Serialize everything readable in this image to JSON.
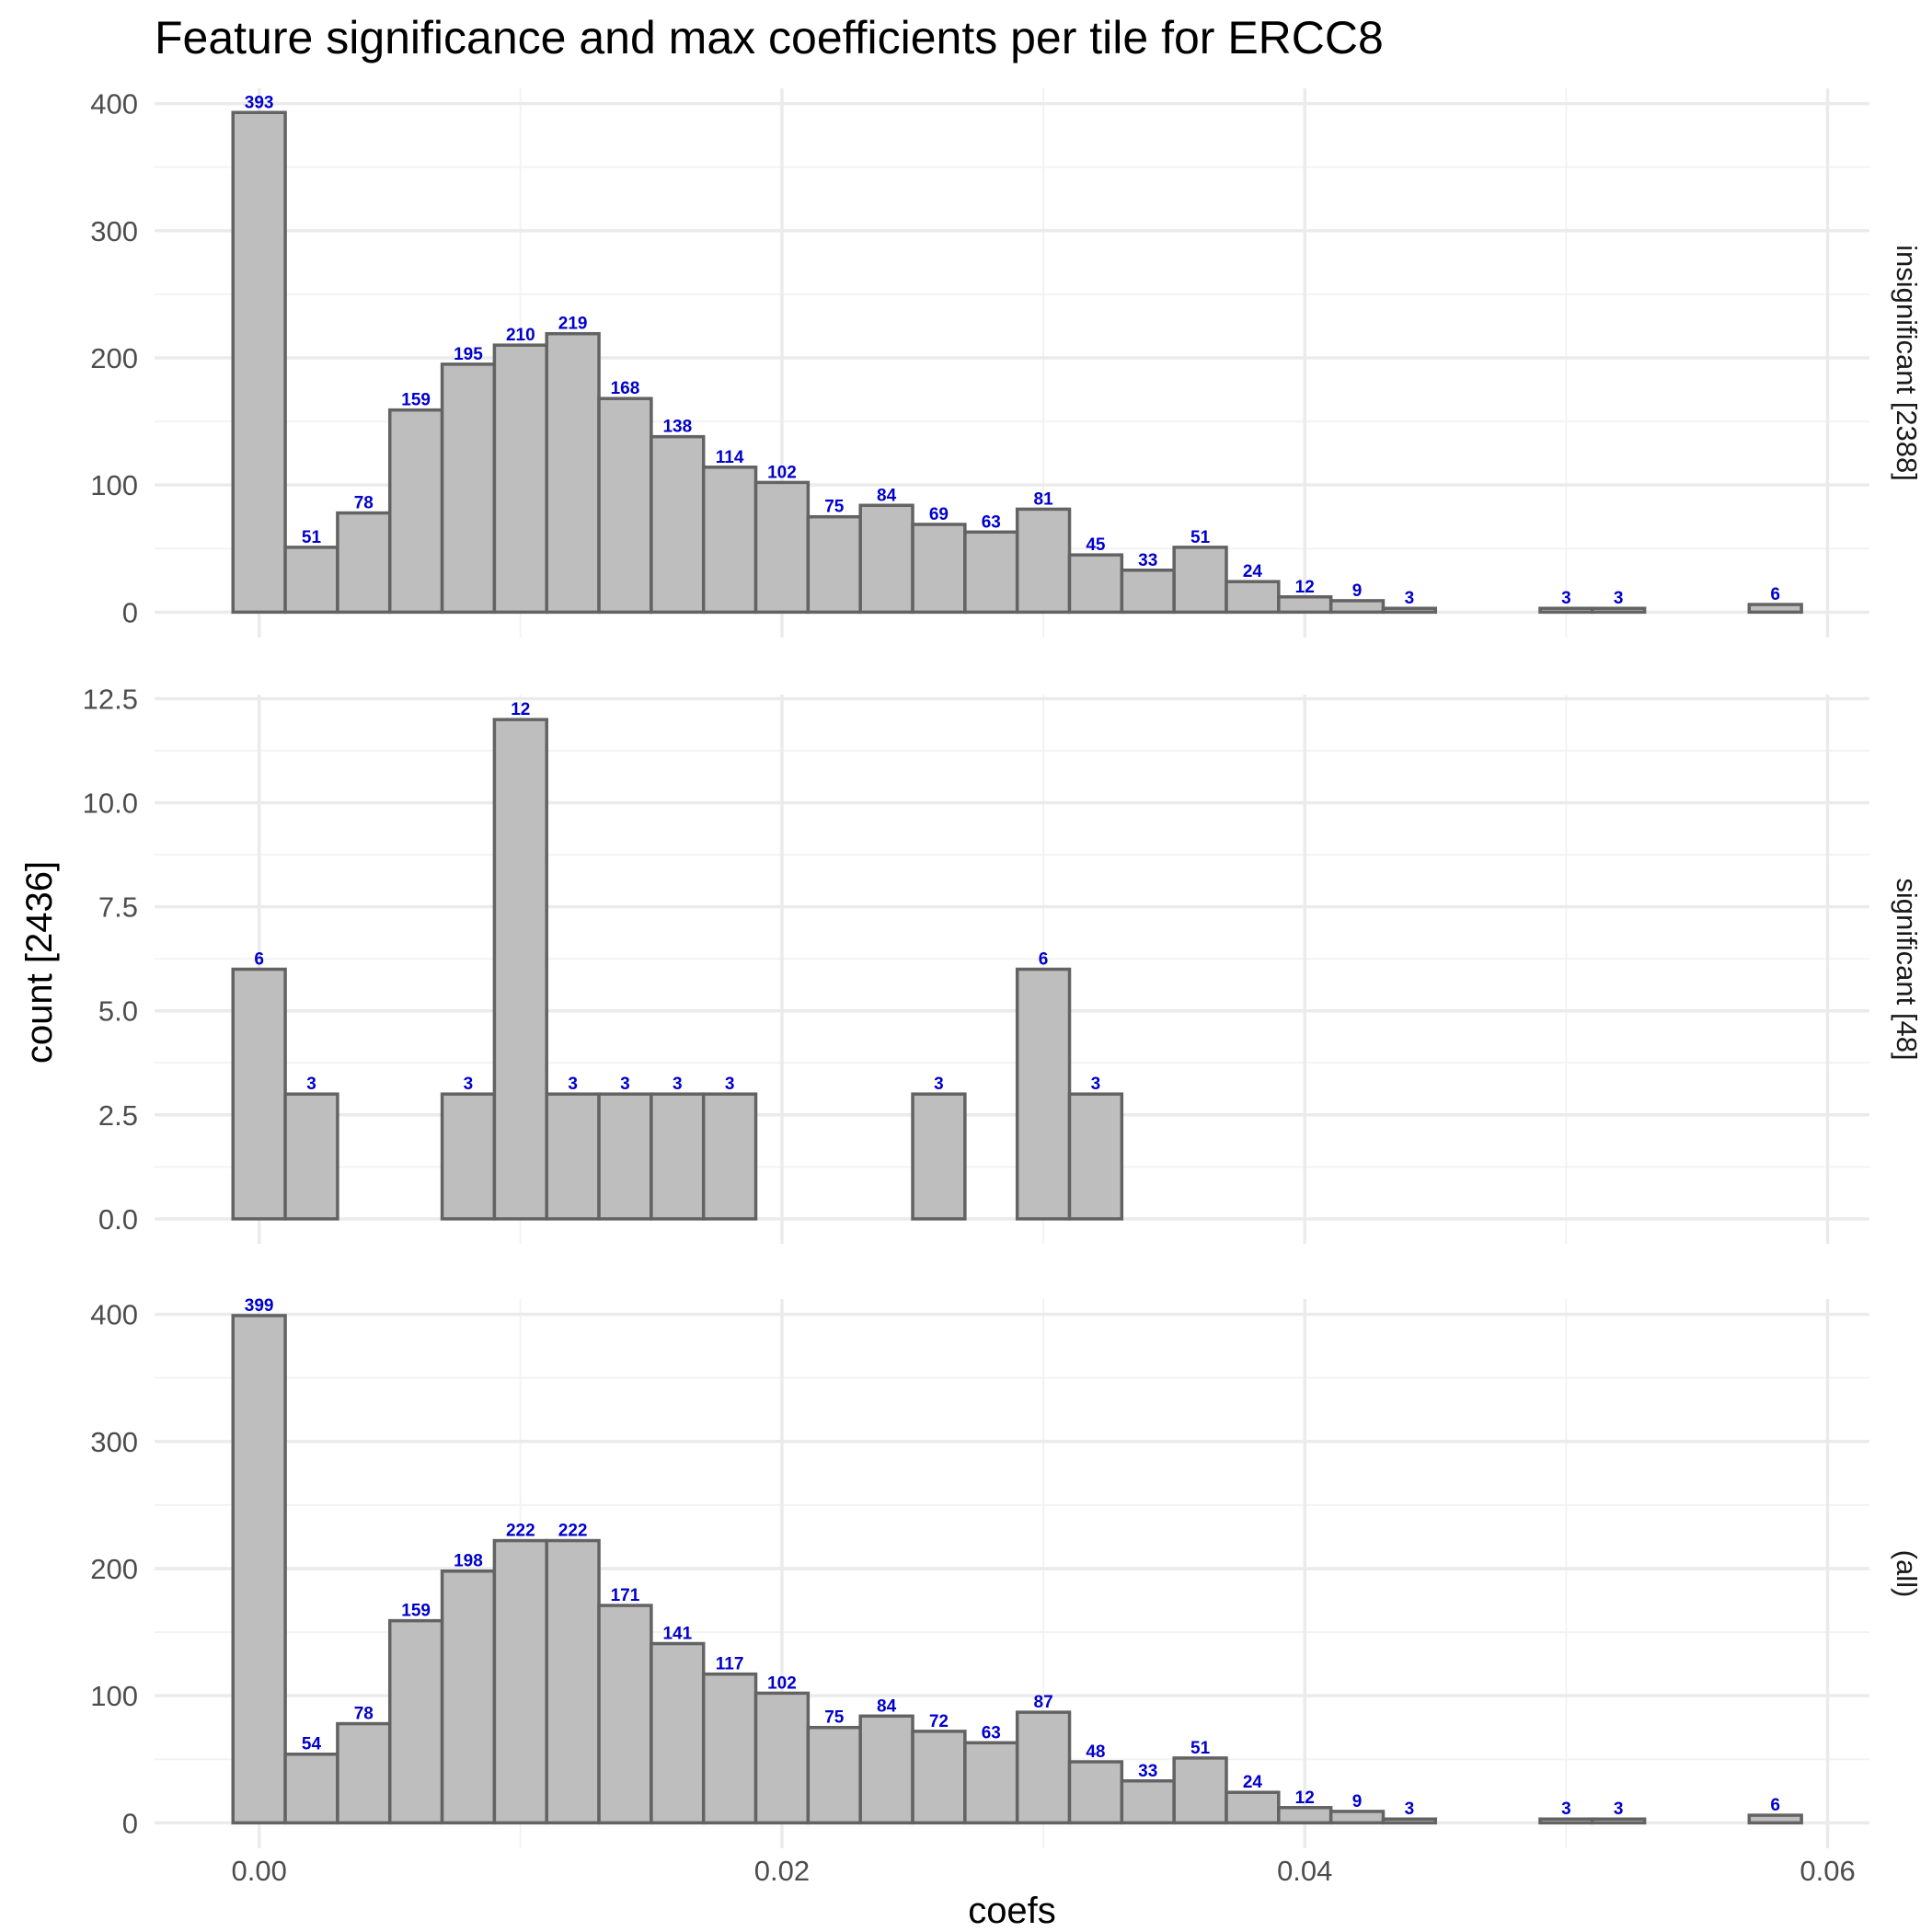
{
  "chart_data": {
    "type": "bar",
    "title": "Feature significance and max coefficients per tile for ERCC8",
    "xlabel": "coefs",
    "ylabel": "count [2436]",
    "x_ticks": [
      0.0,
      0.02,
      0.04,
      0.06
    ],
    "x_tick_labels": [
      "0.00",
      "0.02",
      "0.04",
      "0.06"
    ],
    "xlim": [
      -0.004,
      0.0616
    ],
    "bin_width": 0.002,
    "bin_start": -0.001,
    "colors": {
      "bar_fill": "#bebebe",
      "bar_stroke": "#636363",
      "label": "#0000cc",
      "grid_major": "#ebebeb",
      "grid_minor": "#f3f3f3"
    },
    "grid": true,
    "panels": [
      {
        "strip_label": "insignificant [2388]",
        "ylim": [
          -20,
          412
        ],
        "y_ticks": [
          0,
          100,
          200,
          300,
          400
        ],
        "y_tick_labels": [
          "0",
          "100",
          "200",
          "300",
          "400"
        ],
        "values": [
          393,
          51,
          78,
          159,
          195,
          210,
          219,
          168,
          138,
          114,
          102,
          75,
          84,
          69,
          63,
          81,
          45,
          33,
          51,
          24,
          12,
          9,
          3,
          0,
          0,
          3,
          3,
          0,
          0,
          6
        ],
        "labels": [
          "393",
          "51",
          "78",
          "159",
          "195",
          "210",
          "219",
          "168",
          "138",
          "114",
          "102",
          "75",
          "84",
          "69",
          "63",
          "81",
          "45",
          "33",
          "51",
          "24",
          "12",
          "9",
          "3",
          "",
          "",
          "3",
          "3",
          "",
          "",
          "6"
        ]
      },
      {
        "strip_label": "significant [48]",
        "ylim": [
          -0.6,
          12.6
        ],
        "y_ticks": [
          0,
          2.5,
          5,
          7.5,
          10,
          12.5
        ],
        "y_tick_labels": [
          "0.0",
          "2.5",
          "5.0",
          "7.5",
          "10.0",
          "12.5"
        ],
        "values": [
          6,
          3,
          0,
          0,
          3,
          12,
          3,
          3,
          3,
          3,
          0,
          0,
          0,
          3,
          0,
          6,
          3,
          0,
          0,
          0,
          0,
          0,
          0,
          0,
          0,
          0,
          0,
          0,
          0,
          0
        ],
        "labels": [
          "6",
          "3",
          "",
          "",
          "3",
          "12",
          "3",
          "3",
          "3",
          "3",
          "",
          "",
          "",
          "3",
          "",
          "6",
          "3",
          "",
          "",
          "",
          "",
          "",
          "",
          "",
          "",
          "",
          "",
          "",
          "",
          ""
        ]
      },
      {
        "strip_label": "(all)",
        "ylim": [
          -20,
          412
        ],
        "y_ticks": [
          0,
          100,
          200,
          300,
          400
        ],
        "y_tick_labels": [
          "0",
          "100",
          "200",
          "300",
          "400"
        ],
        "values": [
          399,
          54,
          78,
          159,
          198,
          222,
          222,
          171,
          141,
          117,
          102,
          75,
          84,
          72,
          63,
          87,
          48,
          33,
          51,
          24,
          12,
          9,
          3,
          0,
          0,
          3,
          3,
          0,
          0,
          6
        ],
        "labels": [
          "399",
          "54",
          "78",
          "159",
          "198",
          "222",
          "222",
          "171",
          "141",
          "117",
          "102",
          "75",
          "84",
          "72",
          "63",
          "87",
          "48",
          "33",
          "51",
          "24",
          "12",
          "9",
          "3",
          "",
          "",
          "3",
          "3",
          "",
          "",
          "6"
        ]
      }
    ]
  }
}
